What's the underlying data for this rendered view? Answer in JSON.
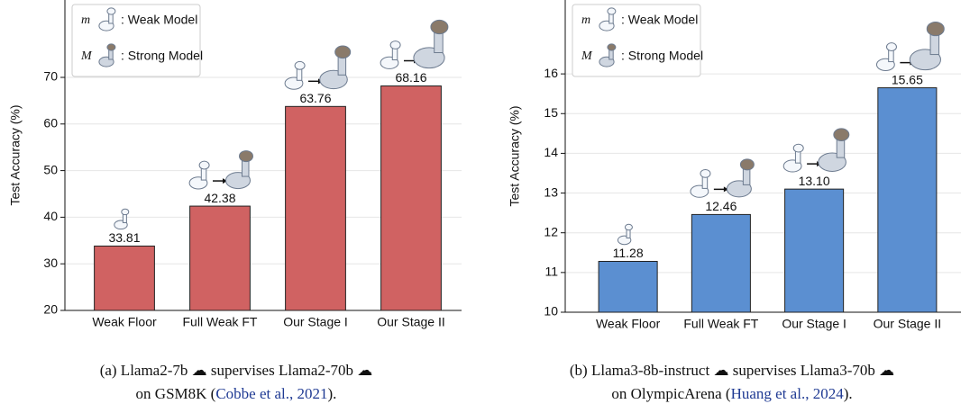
{
  "chart_data": [
    {
      "type": "bar",
      "y_label": "Test Accuracy (%)",
      "categories": [
        "Weak Floor",
        "Full Weak FT",
        "Our Stage I",
        "Our Stage II"
      ],
      "values": [
        33.81,
        42.38,
        63.76,
        68.16
      ],
      "value_labels": [
        "33.81",
        "42.38",
        "63.76",
        "68.16"
      ],
      "color": "#d06262",
      "ylim": [
        20,
        86.6
      ],
      "yticks": [
        20,
        30,
        40,
        50,
        60,
        70
      ],
      "grid": true,
      "legend": [
        {
          "symbol": "m",
          "label": ": Weak Model"
        },
        {
          "symbol": "M",
          "label": ": Strong Model"
        }
      ],
      "caption": {
        "line1": [
          "(a) Llama2-7b",
          "supervises Llama2-70b"
        ],
        "line2": "on GSM8K (",
        "citation": "Cobbe et al., 2021",
        "end": ")."
      }
    },
    {
      "type": "bar",
      "y_label": "Test Accuracy (%)",
      "categories": [
        "Weak Floor",
        "Full Weak FT",
        "Our Stage I",
        "Our Stage II"
      ],
      "values": [
        11.28,
        12.46,
        13.1,
        15.65
      ],
      "value_labels": [
        "11.28",
        "12.46",
        "13.10",
        "15.65"
      ],
      "color": "#5b8fd1",
      "ylim": [
        10,
        17.86
      ],
      "yticks": [
        10,
        11,
        12,
        13,
        14,
        15,
        16
      ],
      "grid": true,
      "legend": [
        {
          "symbol": "m",
          "label": ": Weak Model"
        },
        {
          "symbol": "M",
          "label": ": Strong Model"
        }
      ],
      "caption": {
        "line1": [
          "(b) Llama3-8b-instruct",
          "supervises Llama3-70b"
        ],
        "line2": "on OlympicArena (",
        "citation": "Huang et al., 2024",
        "end": ")."
      }
    }
  ]
}
